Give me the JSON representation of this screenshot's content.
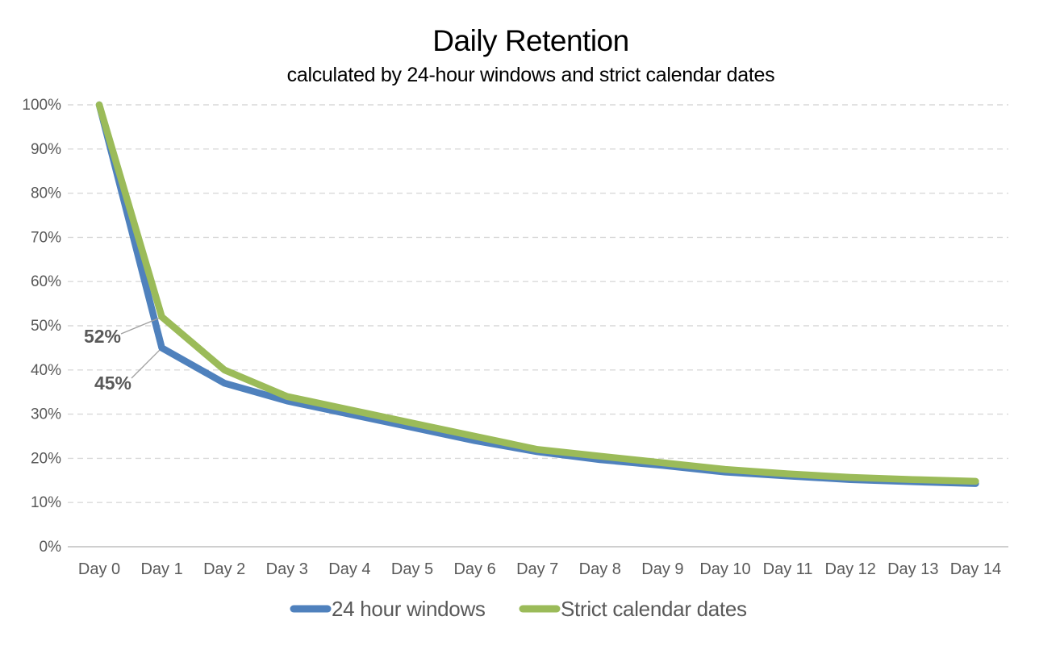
{
  "page": {
    "background": "#ffffff"
  },
  "chart_data": {
    "type": "line",
    "title": "Daily Retention",
    "subtitle": "calculated by 24-hour windows and strict calendar dates",
    "categories": [
      "Day 0",
      "Day 1",
      "Day 2",
      "Day 3",
      "Day 4",
      "Day 5",
      "Day 6",
      "Day 7",
      "Day 8",
      "Day 9",
      "Day 10",
      "Day 11",
      "Day 12",
      "Day 13",
      "Day 14"
    ],
    "series": [
      {
        "name": "24 hour windows",
        "color": "#4F81BD",
        "values": [
          100,
          45,
          37,
          33,
          30,
          27,
          24,
          21.5,
          19.7,
          18.4,
          16.9,
          16,
          15.2,
          14.7,
          14.3
        ]
      },
      {
        "name": "Strict calendar dates",
        "color": "#9BBB59",
        "values": [
          100,
          52,
          40,
          34,
          31,
          28,
          25,
          22,
          20.5,
          19,
          17.5,
          16.5,
          15.7,
          15.2,
          14.8
        ]
      }
    ],
    "ylim": [
      0,
      100
    ],
    "yticks": [
      "0%",
      "10%",
      "20%",
      "30%",
      "40%",
      "50%",
      "60%",
      "70%",
      "80%",
      "90%",
      "100%"
    ],
    "ytick_values": [
      0,
      10,
      20,
      30,
      40,
      50,
      60,
      70,
      80,
      90,
      100
    ],
    "grid": "horizontal-dashed",
    "legend_position": "bottom",
    "annotations": [
      {
        "text": "52%",
        "series": "Strict calendar dates",
        "category": "Day 1",
        "value": 52
      },
      {
        "text": "45%",
        "series": "24 hour windows",
        "category": "Day 1",
        "value": 45
      }
    ],
    "style": {
      "text_color": "#595959",
      "grid_color": "#D9D9D9",
      "axis_color": "#BFBFBF",
      "leader_line_color": "#A0A0A0",
      "annotation_color": "#595959"
    }
  }
}
